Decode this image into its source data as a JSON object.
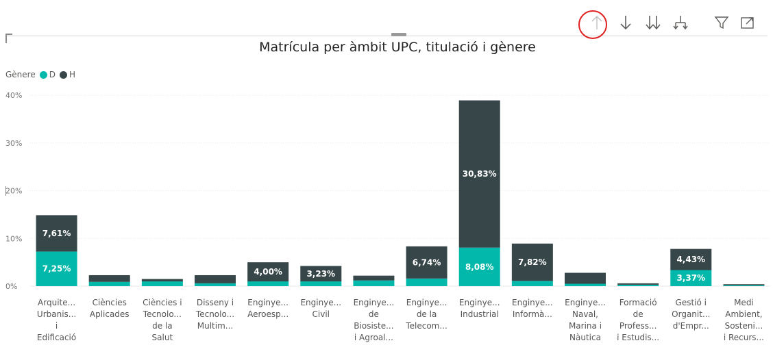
{
  "colors": {
    "female": "#01b8aa",
    "male": "#374649",
    "grid": "#e9e9e9",
    "axis_text": "#777777",
    "label_text": "#ffffff",
    "highlight": "#e0201f"
  },
  "toolbar": {
    "icons": [
      "arrow-up-icon",
      "arrow-down-icon",
      "double-arrow-down-icon",
      "expand-hierarchy-icon",
      "filter-icon",
      "focus-mode-icon"
    ]
  },
  "legend": {
    "title": "Gènere",
    "items": [
      {
        "label": "D",
        "color": "#01b8aa"
      },
      {
        "label": "H",
        "color": "#374649"
      }
    ]
  },
  "chart_data": {
    "type": "bar",
    "stacked": true,
    "title": "Matrícula per àmbit UPC, titulació i gènere",
    "xlabel": "",
    "ylabel": "",
    "ylim": [
      0,
      40
    ],
    "yticks": [
      "0%",
      "10%",
      "20%",
      "30%",
      "40%"
    ],
    "grid": true,
    "legend_position": "top-left",
    "categories": [
      "Arquitectura, Urbanisme i Edificació",
      "Ciències Aplicades",
      "Ciències i Tecnologies de la Salut",
      "Disseny i Tecnologies Multimèdia",
      "Enginyeria Aeroespacial",
      "Enginyeria Civil",
      "Enginyeria de Biosistemes i Agroalimentària",
      "Enginyeria de la Telecomunicació",
      "Enginyeria Industrial",
      "Enginyeria Informàtica",
      "Enginyeria Naval, Marina i Nàutica",
      "Formació de Professorat i Estudis",
      "Gestió i Organització d'Empreses",
      "Medi Ambient, Sostenibilitat i Recursos"
    ],
    "category_labels": [
      [
        "Arquite...",
        "Urbanis...",
        "i",
        "Edificació"
      ],
      [
        "Ciències",
        "Aplicades"
      ],
      [
        "Ciències i",
        "Tecnolo...",
        "de la",
        "Salut"
      ],
      [
        "Disseny i",
        "Tecnolo...",
        "Multim..."
      ],
      [
        "Enginye...",
        "Aeroesp..."
      ],
      [
        "Enginye...",
        "Civil"
      ],
      [
        "Enginye...",
        "de",
        "Biosiste...",
        "i Agroal..."
      ],
      [
        "Enginye...",
        "de la",
        "Telecom..."
      ],
      [
        "Enginye...",
        "Industrial"
      ],
      [
        "Enginye...",
        "Informà..."
      ],
      [
        "Enginye...",
        "Naval,",
        "Marina i",
        "Nàutica"
      ],
      [
        "Formació",
        "de",
        "Profess...",
        "i Estudis..."
      ],
      [
        "Gestió i",
        "Organit...",
        "d'Empr..."
      ],
      [
        "Medi",
        "Ambient,",
        "Sosteni...",
        "i Recurs..."
      ]
    ],
    "series": [
      {
        "name": "D",
        "values": [
          7.25,
          0.9,
          1.0,
          0.6,
          1.0,
          1.0,
          1.2,
          1.6,
          8.08,
          1.1,
          0.5,
          0.3,
          3.37,
          0.2
        ],
        "labels": [
          "7,25%",
          "",
          "",
          "",
          "",
          "",
          "",
          "",
          "8,08%",
          "",
          "",
          "",
          "3,37%",
          ""
        ]
      },
      {
        "name": "H",
        "values": [
          7.61,
          1.4,
          0.5,
          1.7,
          4.0,
          3.23,
          1.0,
          6.74,
          30.83,
          7.82,
          2.3,
          0.3,
          4.43,
          0.2
        ],
        "labels": [
          "7,61%",
          "",
          "",
          "",
          "4,00%",
          "3,23%",
          "",
          "6,74%",
          "30,83%",
          "7,82%",
          "",
          "",
          "4,43%",
          ""
        ]
      }
    ]
  }
}
